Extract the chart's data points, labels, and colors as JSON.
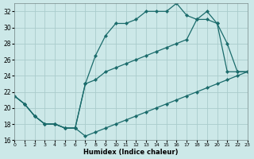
{
  "xlabel": "Humidex (Indice chaleur)",
  "bg_color": "#cce8e8",
  "line_color": "#1a6b6b",
  "grid_color": "#aacccc",
  "xlim": [
    0,
    23
  ],
  "ylim": [
    16,
    33
  ],
  "xticks": [
    0,
    1,
    2,
    3,
    4,
    5,
    6,
    7,
    8,
    9,
    10,
    11,
    12,
    13,
    14,
    15,
    16,
    17,
    18,
    19,
    20,
    21,
    22,
    23
  ],
  "yticks": [
    16,
    18,
    20,
    22,
    24,
    26,
    28,
    30,
    32
  ],
  "line_upper_x": [
    0,
    1,
    2,
    3,
    4,
    5,
    6,
    7,
    8,
    9,
    10,
    11,
    12,
    13,
    14,
    15,
    16,
    17,
    18,
    19,
    20,
    21,
    22,
    23
  ],
  "line_upper_y": [
    21.5,
    20.5,
    19.0,
    18.0,
    18.0,
    17.5,
    17.5,
    23.0,
    26.5,
    29.0,
    30.5,
    30.5,
    31.0,
    32.0,
    32.0,
    32.0,
    33.0,
    31.5,
    31.0,
    32.0,
    30.5,
    28.0,
    24.5,
    24.5
  ],
  "line_mid_x": [
    0,
    1,
    2,
    3,
    4,
    5,
    6,
    7,
    8,
    9,
    10,
    11,
    12,
    13,
    14,
    15,
    16,
    17,
    18,
    19,
    20,
    21,
    22,
    23
  ],
  "line_mid_y": [
    21.5,
    20.5,
    19.0,
    18.0,
    18.0,
    17.5,
    17.5,
    23.0,
    23.5,
    24.5,
    25.0,
    25.5,
    26.0,
    26.5,
    27.0,
    27.5,
    28.0,
    28.5,
    31.0,
    31.0,
    30.5,
    24.5,
    24.5,
    24.5
  ],
  "line_low_x": [
    0,
    1,
    2,
    3,
    4,
    5,
    6,
    7,
    8,
    9,
    10,
    11,
    12,
    13,
    14,
    15,
    16,
    17,
    18,
    19,
    20,
    21,
    22,
    23
  ],
  "line_low_y": [
    21.5,
    20.5,
    19.0,
    18.0,
    18.0,
    17.5,
    17.5,
    16.5,
    17.0,
    17.5,
    18.0,
    18.5,
    19.0,
    19.5,
    20.0,
    20.5,
    21.0,
    21.5,
    22.0,
    22.5,
    23.0,
    23.5,
    24.0,
    24.5
  ]
}
